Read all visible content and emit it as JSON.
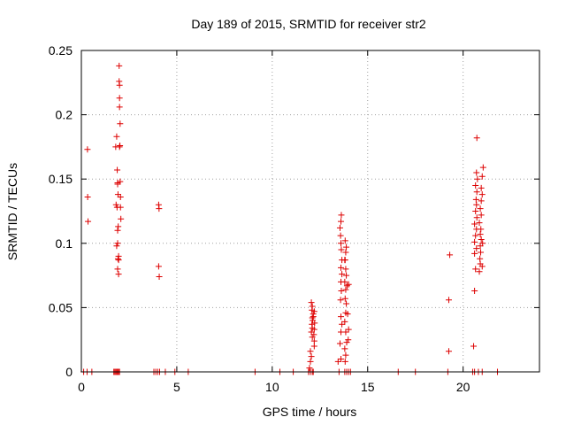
{
  "chart_data": {
    "type": "scatter",
    "title": "Day 189 of 2015, SRMTID for receiver str2",
    "xlabel": "GPS time / hours",
    "ylabel": "SRMTID / TECUs",
    "xlim": [
      0,
      24
    ],
    "ylim": [
      0,
      0.25
    ],
    "xticks": [
      0,
      5,
      10,
      15,
      20
    ],
    "xtick_labels": [
      "0",
      "5",
      "10",
      "15",
      "20"
    ],
    "yticks": [
      0,
      0.05,
      0.1,
      0.15,
      0.2,
      0.25
    ],
    "ytick_labels": [
      "0",
      "0.05",
      "0.1",
      "0.15",
      "0.2",
      "0.25"
    ],
    "grid": true,
    "marker": "+",
    "color": "#dd0000",
    "series": [
      {
        "points": [
          [
            0.12,
            0
          ],
          [
            0.3,
            0
          ],
          [
            0.55,
            0
          ],
          [
            0.32,
            0.173
          ],
          [
            0.33,
            0.136
          ],
          [
            0.35,
            0.117
          ],
          [
            1.7,
            0
          ],
          [
            1.75,
            0
          ],
          [
            1.8,
            0
          ],
          [
            1.85,
            0
          ],
          [
            1.9,
            0
          ],
          [
            1.95,
            0
          ],
          [
            2.0,
            0
          ],
          [
            1.8,
            0.175
          ],
          [
            1.85,
            0.183
          ],
          [
            1.88,
            0.157
          ],
          [
            1.9,
            0.147
          ],
          [
            1.9,
            0.146
          ],
          [
            1.92,
            0.138
          ],
          [
            1.82,
            0.13
          ],
          [
            1.87,
            0.128
          ],
          [
            1.9,
            0.11
          ],
          [
            1.93,
            0.113
          ],
          [
            1.85,
            0.098
          ],
          [
            1.9,
            0.1
          ],
          [
            1.95,
            0.09
          ],
          [
            1.92,
            0.088
          ],
          [
            1.95,
            0.087
          ],
          [
            1.9,
            0.08
          ],
          [
            1.95,
            0.076
          ],
          [
            1.98,
            0.238
          ],
          [
            1.98,
            0.226
          ],
          [
            2.0,
            0.223
          ],
          [
            2.0,
            0.213
          ],
          [
            2.0,
            0.206
          ],
          [
            2.03,
            0.193
          ],
          [
            2.02,
            0.176
          ],
          [
            2.0,
            0.175
          ],
          [
            2.03,
            0.148
          ],
          [
            2.05,
            0.136
          ],
          [
            2.05,
            0.128
          ],
          [
            2.07,
            0.119
          ],
          [
            3.8,
            0
          ],
          [
            3.9,
            0
          ],
          [
            4.0,
            0
          ],
          [
            4.1,
            0
          ],
          [
            4.4,
            0
          ],
          [
            4.9,
            0
          ],
          [
            4.05,
            0.13
          ],
          [
            4.07,
            0.127
          ],
          [
            4.05,
            0.082
          ],
          [
            4.08,
            0.074
          ],
          [
            5.6,
            0
          ],
          [
            9.1,
            0
          ],
          [
            10.4,
            0
          ],
          [
            11.1,
            0
          ],
          [
            11.9,
            0
          ],
          [
            12.0,
            0
          ],
          [
            12.1,
            0
          ],
          [
            12.15,
            0
          ],
          [
            11.95,
            0.003
          ],
          [
            12.0,
            0.008
          ],
          [
            12.05,
            0.012
          ],
          [
            12.0,
            0.016
          ],
          [
            12.1,
            0.027
          ],
          [
            12.05,
            0.031
          ],
          [
            12.1,
            0.034
          ],
          [
            12.08,
            0.037
          ],
          [
            12.12,
            0.04
          ],
          [
            12.1,
            0.042
          ],
          [
            12.15,
            0.045
          ],
          [
            12.08,
            0.048
          ],
          [
            12.1,
            0.051
          ],
          [
            12.05,
            0.054
          ],
          [
            12.2,
            0.02
          ],
          [
            12.2,
            0.024
          ],
          [
            12.18,
            0.029
          ],
          [
            12.2,
            0.033
          ],
          [
            12.22,
            0.038
          ],
          [
            12.15,
            0.043
          ],
          [
            12.2,
            0.047
          ],
          [
            13.5,
            0
          ],
          [
            13.8,
            0
          ],
          [
            13.9,
            0
          ],
          [
            14.0,
            0
          ],
          [
            14.1,
            0
          ],
          [
            13.45,
            0.008
          ],
          [
            13.6,
            0.01
          ],
          [
            13.55,
            0.022
          ],
          [
            13.6,
            0.031
          ],
          [
            13.65,
            0.037
          ],
          [
            13.6,
            0.043
          ],
          [
            13.58,
            0.056
          ],
          [
            13.62,
            0.063
          ],
          [
            13.6,
            0.07
          ],
          [
            13.65,
            0.076
          ],
          [
            13.6,
            0.081
          ],
          [
            13.65,
            0.087
          ],
          [
            13.62,
            0.095
          ],
          [
            13.6,
            0.1
          ],
          [
            13.58,
            0.106
          ],
          [
            13.55,
            0.112
          ],
          [
            13.6,
            0.117
          ],
          [
            13.62,
            0.122
          ],
          [
            13.8,
            0.018
          ],
          [
            13.85,
            0.013
          ],
          [
            13.82,
            0.008
          ],
          [
            13.9,
            0.023
          ],
          [
            13.85,
            0.031
          ],
          [
            13.8,
            0.039
          ],
          [
            13.85,
            0.046
          ],
          [
            13.88,
            0.053
          ],
          [
            13.82,
            0.057
          ],
          [
            13.85,
            0.064
          ],
          [
            13.8,
            0.07
          ],
          [
            13.88,
            0.075
          ],
          [
            13.85,
            0.08
          ],
          [
            13.82,
            0.087
          ],
          [
            13.85,
            0.093
          ],
          [
            13.88,
            0.097
          ],
          [
            13.82,
            0.102
          ],
          [
            13.8,
            0.087
          ],
          [
            13.92,
            0.067
          ],
          [
            13.95,
            0.045
          ],
          [
            14.0,
            0.033
          ],
          [
            13.98,
            0.025
          ],
          [
            14.0,
            0.068
          ],
          [
            16.6,
            0
          ],
          [
            17.5,
            0
          ],
          [
            19.2,
            0
          ],
          [
            20.5,
            0
          ],
          [
            20.6,
            0
          ],
          [
            20.8,
            0
          ],
          [
            21.0,
            0
          ],
          [
            21.8,
            0
          ],
          [
            19.3,
            0.091
          ],
          [
            19.25,
            0.056
          ],
          [
            19.25,
            0.016
          ],
          [
            20.55,
            0.02
          ],
          [
            20.6,
            0.063
          ],
          [
            20.65,
            0.08
          ],
          [
            20.6,
            0.092
          ],
          [
            20.7,
            0.096
          ],
          [
            20.6,
            0.101
          ],
          [
            20.65,
            0.106
          ],
          [
            20.7,
            0.111
          ],
          [
            20.6,
            0.115
          ],
          [
            20.72,
            0.12
          ],
          [
            20.65,
            0.125
          ],
          [
            20.7,
            0.13
          ],
          [
            20.68,
            0.134
          ],
          [
            20.72,
            0.14
          ],
          [
            20.65,
            0.145
          ],
          [
            20.75,
            0.15
          ],
          [
            20.7,
            0.155
          ],
          [
            20.72,
            0.182
          ],
          [
            20.85,
            0.078
          ],
          [
            20.9,
            0.084
          ],
          [
            20.88,
            0.088
          ],
          [
            20.92,
            0.093
          ],
          [
            20.9,
            0.098
          ],
          [
            20.95,
            0.103
          ],
          [
            20.9,
            0.107
          ],
          [
            20.93,
            0.111
          ],
          [
            20.85,
            0.116
          ],
          [
            20.95,
            0.122
          ],
          [
            20.9,
            0.127
          ],
          [
            20.95,
            0.133
          ],
          [
            21.0,
            0.138
          ],
          [
            20.95,
            0.143
          ],
          [
            21.0,
            0.152
          ],
          [
            21.05,
            0.159
          ],
          [
            21.0,
            0.082
          ],
          [
            21.02,
            0.1
          ]
        ]
      }
    ]
  }
}
